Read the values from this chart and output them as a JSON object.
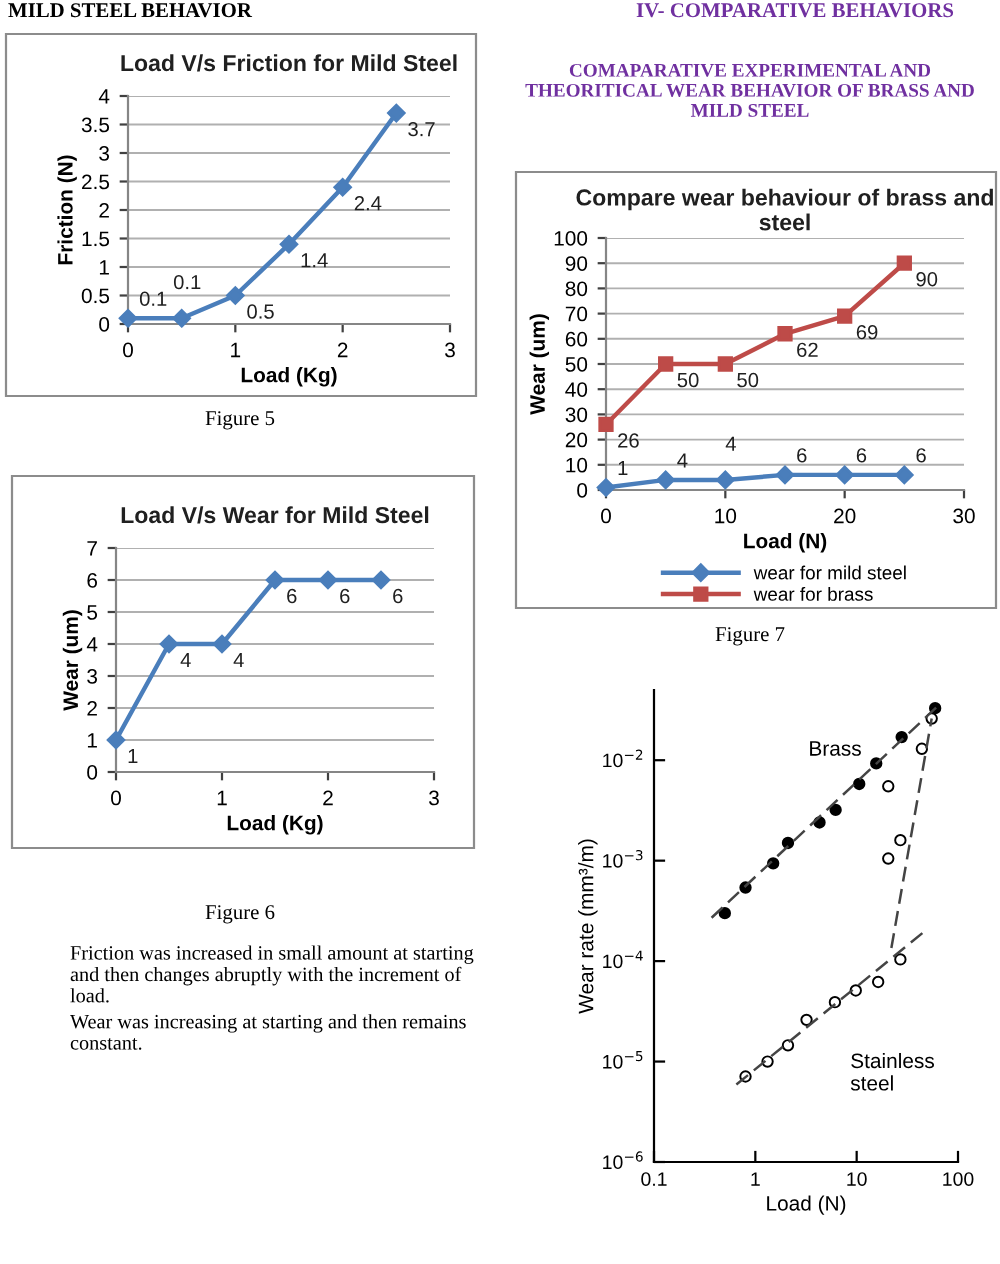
{
  "chart_data": [
    {
      "type": "line",
      "title": "Load V/s Friction for Mild Steel",
      "xlabel": "Load (Kg)",
      "ylabel": "Friction (N)",
      "x": [
        0,
        0.5,
        1,
        1.5,
        2,
        2.5
      ],
      "series": [
        {
          "color": "#4a7ebb",
          "values": [
            0.1,
            0.1,
            0.5,
            1.4,
            2.4,
            3.7
          ]
        }
      ],
      "xlim": [
        0,
        3
      ],
      "xticks": [
        0,
        1,
        2,
        3
      ],
      "ylim": [
        0,
        4
      ],
      "yticks": [
        0,
        0.5,
        1,
        1.5,
        2,
        2.5,
        3,
        3.5,
        4
      ],
      "grid": "y",
      "marker": "diamond",
      "data_labels": true,
      "annotations": [
        "MILD STEEL BEHAVIOR",
        "Figure 5"
      ]
    },
    {
      "type": "line",
      "title": "Load V/s Wear for Mild Steel",
      "xlabel": "Load (Kg)",
      "ylabel": "Wear (um)",
      "x": [
        0,
        0.5,
        1,
        1.5,
        2,
        2.5
      ],
      "series": [
        {
          "color": "#4a7ebb",
          "values": [
            1,
            4,
            4,
            6,
            6,
            6
          ]
        }
      ],
      "xlim": [
        0,
        3
      ],
      "xticks": [
        0,
        1,
        2,
        3
      ],
      "ylim": [
        0,
        7
      ],
      "yticks": [
        0,
        1,
        2,
        3,
        4,
        5,
        6,
        7
      ],
      "grid": "y",
      "marker": "diamond",
      "data_labels": true,
      "annotations": [
        "Figure 6",
        "Friction was increased in small amount at starting\nand then changes abruptly with the increment of\nload.",
        "Wear was increasing at starting and then remains\nconstant."
      ]
    },
    {
      "type": "line",
      "title": "Compare wear behaviour of brass and steel",
      "xlabel": "Load (N)",
      "ylabel": "Wear (um)",
      "x": [
        0,
        5,
        10,
        15,
        20,
        25
      ],
      "series": [
        {
          "name": "wear for mild steel",
          "color": "#4a7ebb",
          "marker": "diamond",
          "values": [
            1,
            4,
            4,
            6,
            6,
            6
          ]
        },
        {
          "name": "wear for brass",
          "color": "#be4b48",
          "marker": "square",
          "values": [
            26,
            50,
            50,
            62,
            69,
            90
          ]
        }
      ],
      "xlim": [
        0,
        30
      ],
      "xticks": [
        0,
        10,
        20,
        30
      ],
      "ylim": [
        0,
        100
      ],
      "yticks": [
        0,
        10,
        20,
        30,
        40,
        50,
        60,
        70,
        80,
        90,
        100
      ],
      "grid": "y",
      "legend": "bottom",
      "data_labels": true,
      "annotations": [
        "IV- COMPARATIVE BEHAVIORS",
        "COMAPARATIVE EXPERIMENTAL AND\nTHEORITICAL WEAR BEHAVIOR OF BRASS AND\nMILD STEEL",
        "Figure 7"
      ]
    },
    {
      "type": "scatter",
      "xlabel": "Load (N)",
      "ylabel": "Wear rate (mm³/m)",
      "log": "xy",
      "series": [
        {
          "name": "Brass",
          "color": "#000000",
          "x": [
            0.5,
            0.8,
            1.5,
            2.1,
            4.3,
            6.2,
            10.6,
            15.6,
            27.8,
            59.5
          ],
          "values": [
            0.0003,
            0.00054,
            0.00094,
            0.0015,
            0.0024,
            0.0032,
            0.0058,
            0.0093,
            0.017,
            0.033
          ]
        },
        {
          "name": "Stainless steel",
          "color": "#ffffff",
          "x": [
            0.8,
            1.32,
            2.1,
            3.2,
            6.1,
            9.8,
            16.3,
            27,
            20.5,
            20.5,
            27,
            44,
            55
          ],
          "values": [
            7.1e-06,
            1e-05,
            1.45e-05,
            2.6e-05,
            3.9e-05,
            5.1e-05,
            6.2e-05,
            0.000104,
            0.0055,
            0.00105,
            0.0016,
            0.013,
            0.026
          ]
        },
        {
          "type": "line",
          "color": "#444444",
          "line_style": "dashed",
          "x": [
            0.37,
            64
          ],
          "values": [
            0.00027,
            0.035
          ]
        },
        {
          "type": "line",
          "color": "#444444",
          "line_style": "dashed",
          "x": [
            0.65,
            44.5
          ],
          "values": [
            5.9e-06,
            0.00019
          ]
        },
        {
          "type": "line",
          "color": "#444444",
          "line_style": "dashed",
          "x": [
            22,
            55
          ],
          "values": [
            0.000135,
            0.026
          ]
        }
      ],
      "xlim": [
        0.1,
        100
      ],
      "xticks": [
        0.1,
        1,
        10,
        100
      ],
      "ylim": [
        1e-06,
        0.05
      ],
      "yticks": [
        {
          "value": 1e-06,
          "label": "10$^{−6}$"
        },
        {
          "value": 1e-05,
          "label": "10$^{−5}$"
        },
        {
          "value": 0.0001,
          "label": "10$^{−4}$"
        },
        {
          "value": 0.001,
          "label": "10$^{−3}$"
        },
        {
          "value": 0.01,
          "label": "10$^{−2}$"
        }
      ]
    }
  ]
}
